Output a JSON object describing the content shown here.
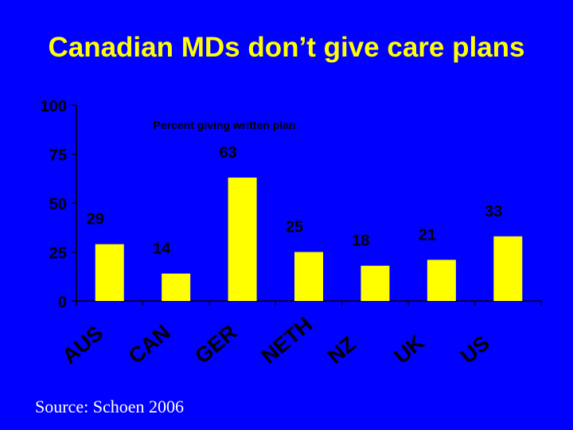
{
  "slide": {
    "title": "Canadian MDs don’t give care plans",
    "source": "Source: Schoen 2006"
  },
  "colors": {
    "background": "#0000FF",
    "bar": "#FFFF00",
    "axis": "#000000",
    "text": "#000000",
    "title": "#FFFF00"
  },
  "chart_data": {
    "type": "bar",
    "title": "Percent giving written plan",
    "categories": [
      "AUS",
      "CAN",
      "GER",
      "NETH",
      "NZ",
      "UK",
      "US"
    ],
    "values": [
      29,
      14,
      63,
      25,
      18,
      21,
      33
    ],
    "data_labels": [
      "29",
      "14",
      "63",
      "25",
      "18",
      "21",
      "33"
    ],
    "ylim": [
      0,
      100
    ],
    "yticks": [
      0,
      25,
      50,
      75,
      100
    ],
    "ytick_labels": [
      "0",
      "25",
      "50",
      "75",
      "100"
    ],
    "xlabel": "",
    "ylabel": "",
    "grid": false,
    "legend": "none"
  }
}
